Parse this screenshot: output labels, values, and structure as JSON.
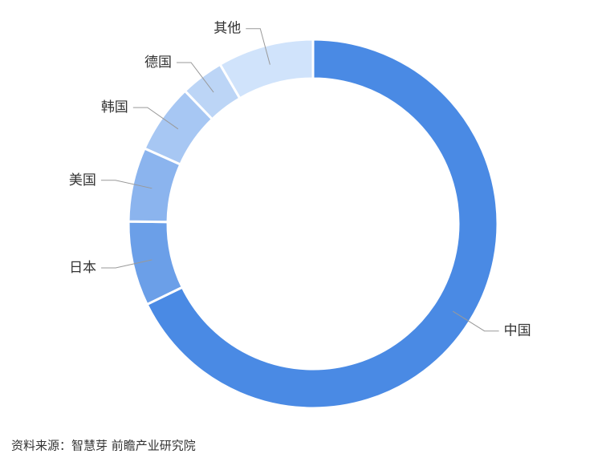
{
  "chart_data": {
    "type": "donut",
    "categories": [
      "中国",
      "日本",
      "美国",
      "韩国",
      "德国",
      "其他"
    ],
    "values": [
      67.8,
      7.4,
      6.5,
      6.1,
      3.8,
      8.4
    ],
    "colors": [
      "#4a8ae4",
      "#6b9fe8",
      "#8bb4ee",
      "#a7c7f3",
      "#bcd5f6",
      "#d0e3fb"
    ],
    "source": "资料来源：智慧芽 前瞻产业研究院"
  }
}
